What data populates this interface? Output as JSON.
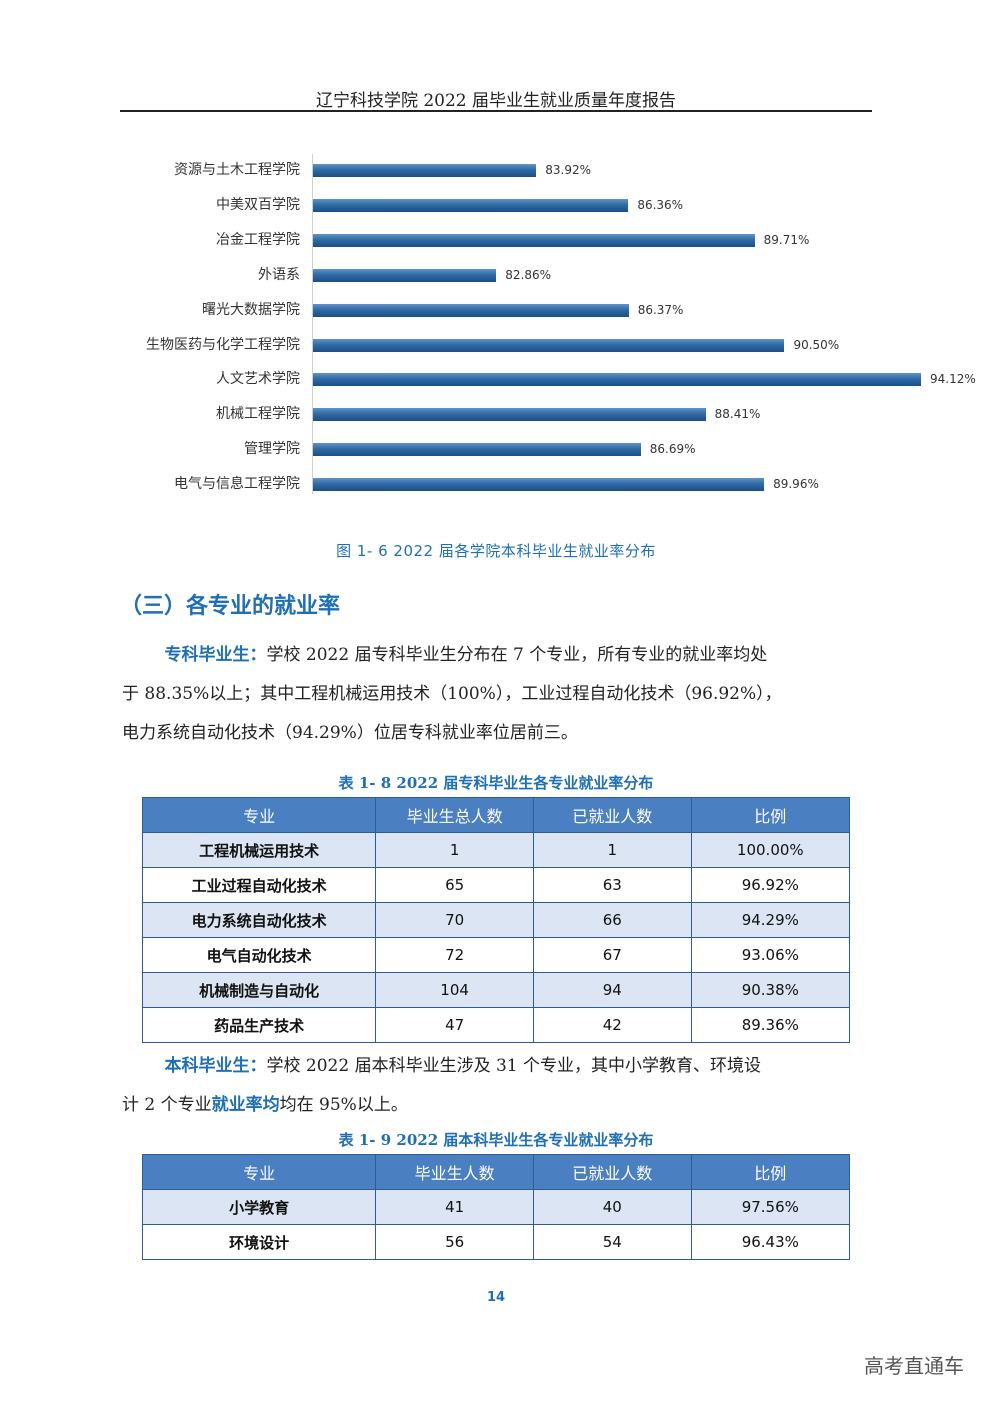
{
  "header": {
    "title": "辽宁科技学院 2022 届毕业生就业质量年度报告"
  },
  "chart_data": {
    "type": "bar",
    "orientation": "horizontal",
    "categories": [
      "资源与土木工程学院",
      "中美双百学院",
      "冶金工程学院",
      "外语系",
      "曙光大数据学院",
      "生物医药与化学工程学院",
      "人文艺术学院",
      "机械工程学院",
      "管理学院",
      "电气与信息工程学院"
    ],
    "values": [
      83.92,
      86.36,
      89.71,
      82.86,
      86.37,
      90.5,
      94.12,
      88.41,
      86.69,
      89.96
    ],
    "value_labels": [
      "83.92%",
      "86.36%",
      "89.71%",
      "82.86%",
      "86.37%",
      "90.50%",
      "94.12%",
      "88.41%",
      "86.69%",
      "89.96%"
    ],
    "unit": "%",
    "grid": false,
    "bar_color": "#2f6aa5"
  },
  "figure_caption": "图 1- 6   2022 届各学院本科毕业生就业率分布",
  "section": {
    "heading": "（三）各专业的就业率"
  },
  "paragraph_1": {
    "lead": "专科毕业生：",
    "line1": "学校 2022 届专科毕业生分布在 7 个专业，所有专业的就业率均处",
    "line2": "于 88.35%以上；其中工程机械运用技术（100%），工业过程自动化技术（96.92%），",
    "line3": "电力系统自动化技术（94.29%）位居专科就业率位居前三。"
  },
  "table_1": {
    "caption": "表 1- 8   2022 届专科毕业生各专业就业率分布",
    "headers": [
      "专业",
      "毕业生总人数",
      "已就业人数",
      "比例"
    ],
    "rows": [
      [
        "工程机械运用技术",
        "1",
        "1",
        "100.00%"
      ],
      [
        "工业过程自动化技术",
        "65",
        "63",
        "96.92%"
      ],
      [
        "电力系统自动化技术",
        "70",
        "66",
        "94.29%"
      ],
      [
        "电气自动化技术",
        "72",
        "67",
        "93.06%"
      ],
      [
        "机械制造与自动化",
        "104",
        "94",
        "90.38%"
      ],
      [
        "药品生产技术",
        "47",
        "42",
        "89.36%"
      ]
    ]
  },
  "paragraph_2": {
    "lead": "本科毕业生：",
    "line1": "学校 2022 届本科毕业生涉及 31 个专业，其中小学教育、环境设",
    "line2_pre": "计 2 个专业",
    "line2_hl": "就业率均",
    "line2_post": "均在 95%以上。"
  },
  "table_2": {
    "caption": "表 1- 9   2022 届本科毕业生各专业就业率分布",
    "headers": [
      "专业",
      "毕业生人数",
      "已就业人数",
      "比例"
    ],
    "rows": [
      [
        "小学教育",
        "41",
        "40",
        "97.56%"
      ],
      [
        "环境设计",
        "56",
        "54",
        "96.43%"
      ]
    ]
  },
  "page_number": "14",
  "watermark": "高考直通车"
}
